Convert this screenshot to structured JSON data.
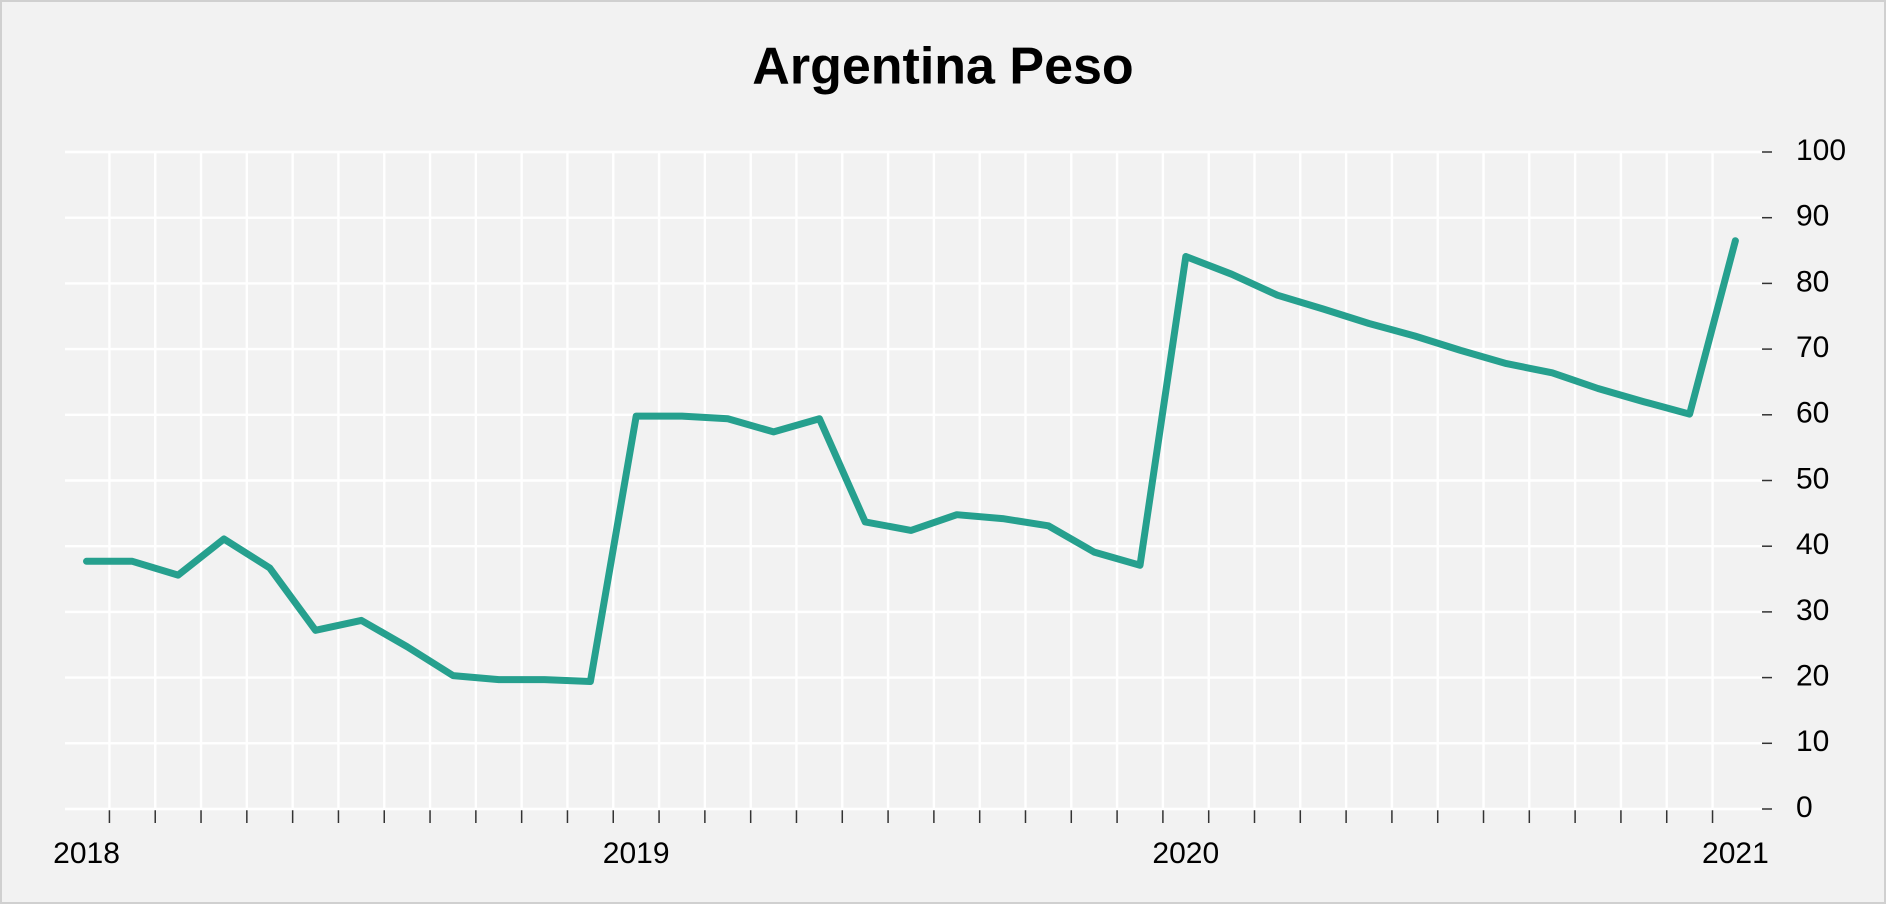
{
  "chart_data": {
    "type": "line",
    "title": "Argentina Peso",
    "x": [
      "2018-01",
      "2018-02",
      "2018-03",
      "2018-04",
      "2018-05",
      "2018-06",
      "2018-07",
      "2018-08",
      "2018-09",
      "2018-10",
      "2018-11",
      "2018-12",
      "2019-01",
      "2019-02",
      "2019-03",
      "2019-04",
      "2019-05",
      "2019-06",
      "2019-07",
      "2019-08",
      "2019-09",
      "2019-10",
      "2019-11",
      "2019-12",
      "2020-01",
      "2020-02",
      "2020-03",
      "2020-04",
      "2020-05",
      "2020-06",
      "2020-07",
      "2020-08",
      "2020-09",
      "2020-10",
      "2020-11",
      "2020-12",
      "2021-01"
    ],
    "series": [
      {
        "name": "Argentina Peso",
        "color": "#26a08e",
        "values": [
          37.7,
          37.7,
          35.6,
          41.1,
          36.7,
          27.2,
          28.7,
          24.7,
          20.3,
          19.7,
          19.7,
          19.4,
          59.8,
          59.8,
          59.4,
          57.4,
          59.4,
          43.7,
          42.4,
          44.8,
          44.2,
          43.1,
          39.1,
          37.1,
          84.1,
          81.4,
          78.2,
          76.1,
          73.9,
          72.0,
          69.8,
          67.8,
          66.4,
          64.0,
          62.0,
          60.1,
          86.5
        ]
      }
    ],
    "xticks": [
      {
        "value": "2018-01",
        "label": "2018"
      },
      {
        "value": "2019-01",
        "label": "2019"
      },
      {
        "value": "2020-01",
        "label": "2020"
      },
      {
        "value": "2021-01",
        "label": "2021"
      }
    ],
    "ylim": [
      0,
      100
    ],
    "yticks": [
      0,
      10,
      20,
      30,
      40,
      50,
      60,
      70,
      80,
      90,
      100
    ],
    "grid": true,
    "y_axis_side": "right"
  }
}
